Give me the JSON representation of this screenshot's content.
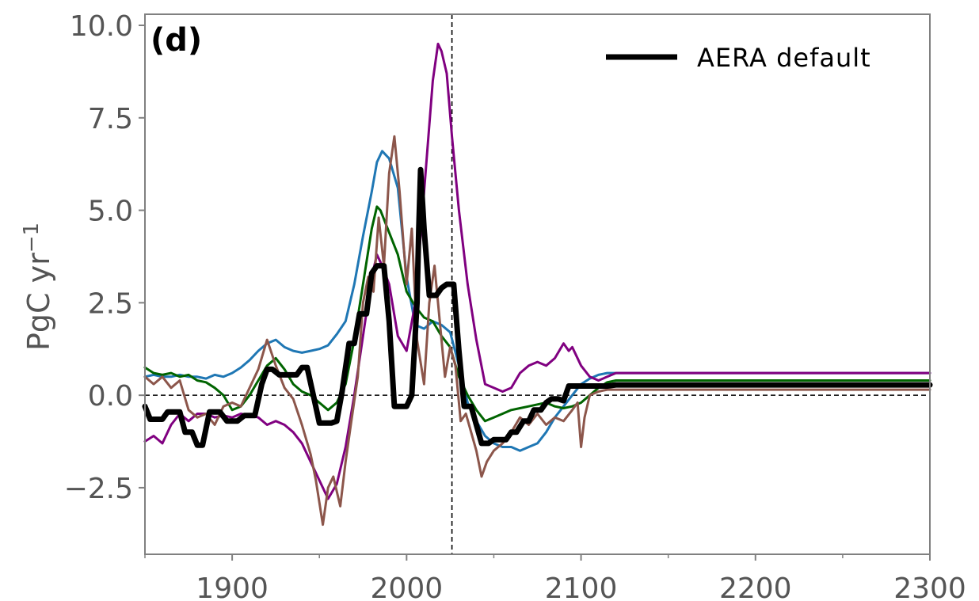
{
  "chart_data": {
    "type": "line",
    "panel_label": "(d)",
    "ylabel": "PgC yr",
    "ylabel_exponent": "−1",
    "xlim": [
      1850,
      2300
    ],
    "ylim": [
      -4.3,
      10.3
    ],
    "xticks": [
      1900,
      2000,
      2100,
      2200,
      2300
    ],
    "xtick_labels": [
      "1900",
      "2000",
      "2100",
      "2200",
      "2300"
    ],
    "xminor_ticks": [
      1850,
      1950,
      2050,
      2150,
      2250
    ],
    "yticks": [
      -2.5,
      0.0,
      2.5,
      5.0,
      7.5,
      10.0
    ],
    "ytick_labels": [
      "−2.5",
      "0.0",
      "2.5",
      "5.0",
      "7.5",
      "10.0"
    ],
    "hline_y": 0,
    "vline_x": 2026,
    "legend": {
      "placement": "top-right",
      "entries": [
        "AERA default"
      ]
    },
    "colors": {
      "AERA default": "#000000",
      "blue": "#1f77b4",
      "green": "#006400",
      "purple": "#800080",
      "brown": "#8c564b",
      "axis": "#808080",
      "text": "#555555"
    },
    "series": [
      {
        "name": "AERA default",
        "color": "#000000",
        "width": 7,
        "x": [
          1850,
          1853,
          1860,
          1863,
          1867,
          1870,
          1873,
          1877,
          1880,
          1883,
          1887,
          1890,
          1893,
          1897,
          1900,
          1903,
          1907,
          1910,
          1913,
          1917,
          1920,
          1923,
          1927,
          1930,
          1933,
          1937,
          1940,
          1943,
          1947,
          1950,
          1953,
          1957,
          1960,
          1963,
          1967,
          1970,
          1973,
          1977,
          1980,
          1983,
          1987,
          1990,
          1993,
          1997,
          2000,
          2003,
          2006,
          2007,
          2008,
          2010,
          2013,
          2017,
          2020,
          2023,
          2027,
          2030,
          2033,
          2037,
          2040,
          2043,
          2047,
          2050,
          2053,
          2057,
          2060,
          2063,
          2067,
          2070,
          2073,
          2077,
          2080,
          2083,
          2087,
          2090,
          2093,
          2097,
          2100,
          2103,
          2107,
          2110,
          2115,
          2120,
          2150,
          2200,
          2250,
          2300
        ],
        "y": [
          -0.3,
          -0.65,
          -0.65,
          -0.45,
          -0.45,
          -0.45,
          -1.0,
          -1.0,
          -1.35,
          -1.35,
          -0.45,
          -0.45,
          -0.45,
          -0.7,
          -0.7,
          -0.7,
          -0.55,
          -0.55,
          -0.55,
          0.3,
          0.7,
          0.7,
          0.55,
          0.55,
          0.55,
          0.55,
          0.75,
          0.75,
          -0.1,
          -0.75,
          -0.75,
          -0.75,
          -0.7,
          0.1,
          1.4,
          1.4,
          2.2,
          2.2,
          3.3,
          3.5,
          3.5,
          2.0,
          -0.3,
          -0.3,
          -0.3,
          0.0,
          2.5,
          4.5,
          6.1,
          4.5,
          2.7,
          2.7,
          2.9,
          3.0,
          3.0,
          1.2,
          -0.3,
          -0.3,
          -0.8,
          -1.3,
          -1.3,
          -1.2,
          -1.2,
          -1.2,
          -1.0,
          -1.0,
          -0.7,
          -0.7,
          -0.4,
          -0.4,
          -0.2,
          -0.1,
          -0.1,
          -0.15,
          0.25,
          0.25,
          0.25,
          0.25,
          0.25,
          0.25,
          0.25,
          0.28,
          0.28,
          0.28,
          0.28,
          0.28
        ]
      },
      {
        "color": "#1f77b4",
        "width": 3,
        "x": [
          1850,
          1855,
          1860,
          1865,
          1870,
          1875,
          1880,
          1885,
          1890,
          1895,
          1900,
          1905,
          1910,
          1915,
          1920,
          1925,
          1930,
          1935,
          1940,
          1945,
          1950,
          1955,
          1960,
          1965,
          1970,
          1975,
          1980,
          1983,
          1986,
          1990,
          1995,
          2000,
          2005,
          2010,
          2015,
          2020,
          2025,
          2030,
          2035,
          2040,
          2045,
          2050,
          2055,
          2060,
          2065,
          2070,
          2075,
          2080,
          2085,
          2090,
          2095,
          2100,
          2105,
          2110,
          2115,
          2120,
          2150,
          2200,
          2250,
          2300
        ],
        "y": [
          0.5,
          0.55,
          0.5,
          0.5,
          0.55,
          0.5,
          0.5,
          0.45,
          0.55,
          0.5,
          0.6,
          0.75,
          0.95,
          1.2,
          1.4,
          1.5,
          1.3,
          1.2,
          1.15,
          1.2,
          1.25,
          1.35,
          1.65,
          2.0,
          3.0,
          4.3,
          5.5,
          6.3,
          6.6,
          6.4,
          5.6,
          3.2,
          1.9,
          1.8,
          2.0,
          1.9,
          1.7,
          0.8,
          -0.2,
          -0.7,
          -1.1,
          -1.3,
          -1.4,
          -1.4,
          -1.5,
          -1.4,
          -1.3,
          -1.0,
          -0.6,
          -0.3,
          0.0,
          0.3,
          0.45,
          0.55,
          0.6,
          0.6,
          0.6,
          0.6,
          0.6,
          0.6
        ]
      },
      {
        "color": "#006400",
        "width": 3,
        "x": [
          1850,
          1855,
          1860,
          1865,
          1870,
          1875,
          1880,
          1885,
          1890,
          1895,
          1900,
          1905,
          1910,
          1915,
          1920,
          1925,
          1930,
          1935,
          1940,
          1945,
          1950,
          1955,
          1960,
          1965,
          1970,
          1975,
          1980,
          1983,
          1985,
          1990,
          1995,
          2000,
          2005,
          2010,
          2015,
          2020,
          2025,
          2030,
          2035,
          2040,
          2045,
          2050,
          2055,
          2060,
          2065,
          2070,
          2075,
          2080,
          2085,
          2090,
          2095,
          2100,
          2105,
          2110,
          2115,
          2120,
          2150,
          2200,
          2250,
          2300
        ],
        "y": [
          0.75,
          0.6,
          0.55,
          0.6,
          0.5,
          0.55,
          0.4,
          0.35,
          0.2,
          0.0,
          -0.4,
          -0.3,
          0.0,
          0.4,
          0.8,
          1.0,
          0.7,
          0.3,
          0.1,
          0.0,
          -0.2,
          -0.4,
          -0.2,
          0.3,
          1.5,
          3.0,
          4.5,
          5.1,
          5.0,
          4.4,
          3.8,
          2.8,
          2.4,
          2.1,
          2.0,
          1.6,
          1.3,
          0.5,
          0.0,
          -0.4,
          -0.7,
          -0.6,
          -0.5,
          -0.4,
          -0.35,
          -0.3,
          -0.25,
          -0.2,
          -0.3,
          -0.35,
          -0.3,
          -0.2,
          0.0,
          0.2,
          0.35,
          0.4,
          0.4,
          0.4,
          0.4,
          0.4
        ]
      },
      {
        "color": "#800080",
        "width": 3,
        "x": [
          1850,
          1855,
          1860,
          1865,
          1870,
          1875,
          1880,
          1885,
          1890,
          1895,
          1900,
          1905,
          1910,
          1915,
          1920,
          1925,
          1930,
          1935,
          1940,
          1945,
          1950,
          1955,
          1960,
          1965,
          1970,
          1975,
          1980,
          1983,
          1986,
          1990,
          1995,
          2000,
          2005,
          2010,
          2015,
          2018,
          2020,
          2023,
          2026,
          2030,
          2035,
          2040,
          2045,
          2050,
          2055,
          2060,
          2065,
          2070,
          2075,
          2080,
          2085,
          2090,
          2093,
          2095,
          2100,
          2105,
          2110,
          2115,
          2120,
          2150,
          2200,
          2250,
          2300
        ],
        "y": [
          -1.25,
          -1.1,
          -1.3,
          -0.8,
          -0.5,
          -0.7,
          -0.5,
          -0.5,
          -0.6,
          -0.55,
          -0.6,
          -0.5,
          -0.55,
          -0.6,
          -0.8,
          -0.7,
          -0.8,
          -1.0,
          -1.3,
          -1.8,
          -2.3,
          -2.8,
          -2.4,
          -1.4,
          0.0,
          1.6,
          3.2,
          3.8,
          3.5,
          3.0,
          1.6,
          1.2,
          2.5,
          5.5,
          8.5,
          9.5,
          9.3,
          8.7,
          7.0,
          5.0,
          3.0,
          1.5,
          0.3,
          0.2,
          0.1,
          0.2,
          0.6,
          0.8,
          0.9,
          0.8,
          1.0,
          1.4,
          1.2,
          1.3,
          0.8,
          0.5,
          0.4,
          0.5,
          0.6,
          0.6,
          0.6,
          0.6,
          0.6
        ]
      },
      {
        "color": "#8c564b",
        "width": 3,
        "x": [
          1850,
          1855,
          1860,
          1865,
          1870,
          1875,
          1880,
          1885,
          1890,
          1895,
          1900,
          1905,
          1910,
          1915,
          1920,
          1925,
          1930,
          1935,
          1940,
          1945,
          1948,
          1952,
          1955,
          1958,
          1962,
          1965,
          1968,
          1972,
          1975,
          1978,
          1981,
          1984,
          1987,
          1990,
          1993,
          1996,
          2000,
          2003,
          2006,
          2010,
          2013,
          2016,
          2019,
          2022,
          2025,
          2028,
          2031,
          2034,
          2037,
          2040,
          2043,
          2046,
          2050,
          2055,
          2060,
          2065,
          2070,
          2075,
          2080,
          2085,
          2090,
          2095,
          2098,
          2100,
          2102,
          2105,
          2110,
          2115,
          2120,
          2150,
          2200,
          2250,
          2300
        ],
        "y": [
          0.5,
          0.3,
          0.5,
          0.2,
          0.4,
          -0.4,
          -0.6,
          -0.5,
          -0.8,
          -0.3,
          -0.2,
          -0.3,
          0.2,
          0.7,
          1.5,
          0.8,
          0.2,
          -0.1,
          -0.8,
          -1.6,
          -2.3,
          -3.5,
          -2.5,
          -2.2,
          -3.0,
          -1.8,
          -0.8,
          0.5,
          2.5,
          3.2,
          2.8,
          4.8,
          3.5,
          6.0,
          7.0,
          5.5,
          3.0,
          4.5,
          1.5,
          0.3,
          2.5,
          3.5,
          2.0,
          0.5,
          1.3,
          0.8,
          -0.7,
          -0.5,
          -1.0,
          -1.5,
          -2.2,
          -1.8,
          -1.5,
          -1.3,
          -1.0,
          -0.6,
          -0.8,
          -0.5,
          -0.8,
          -0.6,
          -0.7,
          -0.4,
          -0.2,
          -1.4,
          -0.6,
          0.0,
          0.1,
          0.15,
          0.15,
          0.15,
          0.15,
          0.15,
          0.15
        ]
      }
    ]
  }
}
